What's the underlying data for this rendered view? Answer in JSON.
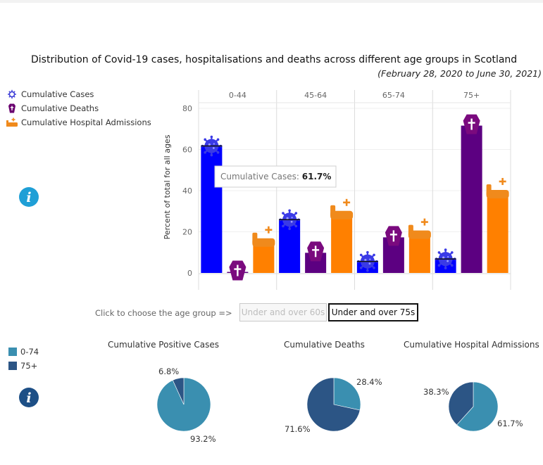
{
  "header": {
    "title": "Distribution of  Covid-19 cases, hospitalisations and deaths across different age groups in Scotland",
    "subtitle": "(February 28, 2020 to June 30, 2021)"
  },
  "legend_top": [
    {
      "label": "Cumulative Cases",
      "icon": "virus-icon",
      "color": "#3b3bd6"
    },
    {
      "label": "Cumulative Deaths",
      "icon": "coffin-icon",
      "color": "#6a006f"
    },
    {
      "label": "Cumulative Hospital Admissions",
      "icon": "hospital-bed-icon",
      "color": "#f08a1c"
    }
  ],
  "chart_data": [
    {
      "type": "bar",
      "title": "",
      "ylabel": "Percent of total for all ages",
      "ylim": [
        0,
        80
      ],
      "yticks": [
        0,
        20,
        40,
        60,
        80
      ],
      "categories": [
        "0-44",
        "45-64",
        "65-74",
        "75+"
      ],
      "series": [
        {
          "name": "Cumulative Cases",
          "color": "#0000ff",
          "values": [
            61.7,
            25.9,
            5.6,
            6.8
          ]
        },
        {
          "name": "Cumulative Deaths",
          "color": "#5c0081",
          "values": [
            0.5,
            9.8,
            17.3,
            71.6
          ]
        },
        {
          "name": "Cumulative Hospital Admissions",
          "color": "#ff8000",
          "values": [
            14.8,
            28.1,
            18.6,
            38.3
          ]
        }
      ],
      "grid": true,
      "tooltip": {
        "label": "Cumulative Cases:",
        "value": "61.7%"
      }
    },
    {
      "type": "pie",
      "title": "Cumulative Positive Cases",
      "categories": [
        "0-74",
        "75+"
      ],
      "values": [
        93.2,
        6.8
      ],
      "labels": [
        "93.2%",
        "6.8%"
      ]
    },
    {
      "type": "pie",
      "title": "Cumulative Deaths",
      "categories": [
        "0-74",
        "75+"
      ],
      "values": [
        28.4,
        71.6
      ],
      "labels": [
        "28.4%",
        "71.6%"
      ]
    },
    {
      "type": "pie",
      "title": "Cumulative Hospital Admissions",
      "categories": [
        "0-74",
        "75+"
      ],
      "values": [
        61.7,
        38.3
      ],
      "labels": [
        "61.7%",
        "38.3%"
      ]
    }
  ],
  "chooser": {
    "label": "Click to choose the age group  =>",
    "options": [
      "Under and over 60s",
      "Under and over 75s"
    ],
    "selected": "Under and over 75s"
  },
  "legend_bottom": [
    {
      "label": "0-74",
      "color": "#3a8fb0"
    },
    {
      "label": "75+",
      "color": "#2c5585"
    }
  ],
  "colors": {
    "info_top": "#1f9fd6",
    "info_bottom": "#1d4f86",
    "pie_0_74": "#3a8fb0",
    "pie_75_plus": "#2c5585"
  }
}
